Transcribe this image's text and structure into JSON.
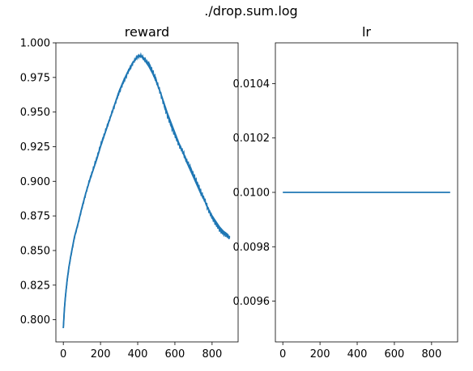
{
  "figure": {
    "suptitle": "./drop.sum.log"
  },
  "chart_data": [
    {
      "type": "line",
      "title": "reward",
      "xlabel": "",
      "ylabel": "",
      "xlim": [
        -40,
        940
      ],
      "ylim": [
        0.784,
        1.0
      ],
      "xticks": [
        0,
        200,
        400,
        600,
        800
      ],
      "xtick_labels": [
        "0",
        "200",
        "400",
        "600",
        "800"
      ],
      "yticks": [
        0.8,
        0.825,
        0.85,
        0.875,
        0.9,
        0.925,
        0.95,
        0.975,
        1.0
      ],
      "ytick_labels": [
        "0.800",
        "0.825",
        "0.850",
        "0.875",
        "0.900",
        "0.925",
        "0.950",
        "0.975",
        "1.000"
      ],
      "grid": false,
      "series": [
        {
          "color": "#1f77b4",
          "x": [
            0,
            5,
            10,
            20,
            30,
            40,
            50,
            60,
            80,
            100,
            120,
            140,
            160,
            180,
            200,
            225,
            250,
            275,
            300,
            325,
            350,
            375,
            400,
            420,
            440,
            460,
            480,
            500,
            520,
            540,
            560,
            580,
            600,
            620,
            640,
            660,
            680,
            700,
            720,
            740,
            760,
            780,
            800,
            820,
            840,
            860,
            880,
            895
          ],
          "y": [
            0.794,
            0.806,
            0.815,
            0.828,
            0.838,
            0.846,
            0.853,
            0.86,
            0.87,
            0.881,
            0.891,
            0.9,
            0.908,
            0.916,
            0.925,
            0.935,
            0.945,
            0.955,
            0.965,
            0.973,
            0.98,
            0.986,
            0.99,
            0.99,
            0.987,
            0.983,
            0.978,
            0.972,
            0.965,
            0.957,
            0.949,
            0.942,
            0.935,
            0.928,
            0.922,
            0.915,
            0.909,
            0.903,
            0.897,
            0.891,
            0.886,
            0.88,
            0.875,
            0.871,
            0.867,
            0.864,
            0.862,
            0.859
          ]
        }
      ]
    },
    {
      "type": "line",
      "title": "lr",
      "xlabel": "",
      "ylabel": "",
      "xlim": [
        -40,
        940
      ],
      "ylim": [
        0.00945,
        0.01055
      ],
      "xticks": [
        0,
        200,
        400,
        600,
        800
      ],
      "xtick_labels": [
        "0",
        "200",
        "400",
        "600",
        "800"
      ],
      "yticks": [
        0.0096,
        0.0098,
        0.01,
        0.0102,
        0.0104
      ],
      "ytick_labels": [
        "0.0096",
        "0.0098",
        "0.0100",
        "0.0102",
        "0.0104"
      ],
      "grid": false,
      "series": [
        {
          "color": "#1f77b4",
          "x": [
            0,
            900
          ],
          "y": [
            0.01,
            0.01
          ]
        }
      ]
    }
  ]
}
